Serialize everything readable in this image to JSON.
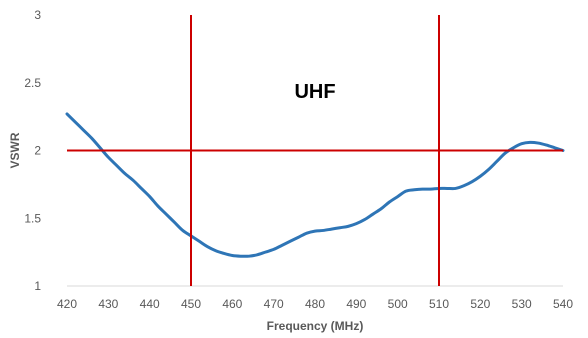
{
  "chart_data": {
    "type": "line",
    "title": "",
    "xlabel": "Frequency (MHz)",
    "ylabel": "VSWR",
    "xlim": [
      420,
      540
    ],
    "ylim": [
      1,
      3
    ],
    "grid": false,
    "x_ticks": [
      420,
      430,
      440,
      450,
      460,
      470,
      480,
      490,
      500,
      510,
      520,
      530,
      540
    ],
    "x_tick_labels": [
      "420",
      "430",
      "440",
      "450",
      "460",
      "470",
      "480",
      "490",
      "500",
      "510",
      "520",
      "530",
      "540"
    ],
    "y_ticks": [
      1,
      1.5,
      2,
      2.5,
      3
    ],
    "y_tick_labels": [
      "1",
      "1.5",
      "2",
      "2.5",
      "3"
    ],
    "series": [
      {
        "color": "#2e75b6",
        "x": [
          420,
          422,
          424,
          426,
          428,
          430,
          432,
          434,
          436,
          438,
          440,
          442,
          444,
          446,
          448,
          450,
          452,
          454,
          456,
          458,
          460,
          462,
          464,
          466,
          468,
          470,
          472,
          474,
          476,
          478,
          480,
          482,
          484,
          486,
          488,
          490,
          492,
          494,
          496,
          498,
          500,
          502,
          504,
          506,
          508,
          510,
          512,
          514,
          516,
          518,
          520,
          522,
          524,
          526,
          528,
          530,
          532,
          534,
          536,
          538,
          540
        ],
        "y": [
          2.27,
          2.21,
          2.15,
          2.09,
          2.02,
          1.95,
          1.89,
          1.83,
          1.78,
          1.72,
          1.66,
          1.59,
          1.53,
          1.47,
          1.41,
          1.37,
          1.33,
          1.29,
          1.26,
          1.24,
          1.225,
          1.22,
          1.22,
          1.23,
          1.25,
          1.27,
          1.3,
          1.33,
          1.36,
          1.39,
          1.405,
          1.41,
          1.42,
          1.43,
          1.44,
          1.46,
          1.49,
          1.53,
          1.57,
          1.62,
          1.66,
          1.7,
          1.71,
          1.715,
          1.715,
          1.72,
          1.72,
          1.72,
          1.74,
          1.77,
          1.81,
          1.86,
          1.92,
          1.98,
          2.02,
          2.05,
          2.06,
          2.055,
          2.04,
          2.02,
          2.0
        ]
      }
    ],
    "reference_lines": {
      "horizontal": [
        2
      ],
      "vertical": [
        450,
        510
      ],
      "color": "#cc0000"
    },
    "annotation": {
      "text": "UHF",
      "x": 480,
      "y": 2.44
    }
  }
}
